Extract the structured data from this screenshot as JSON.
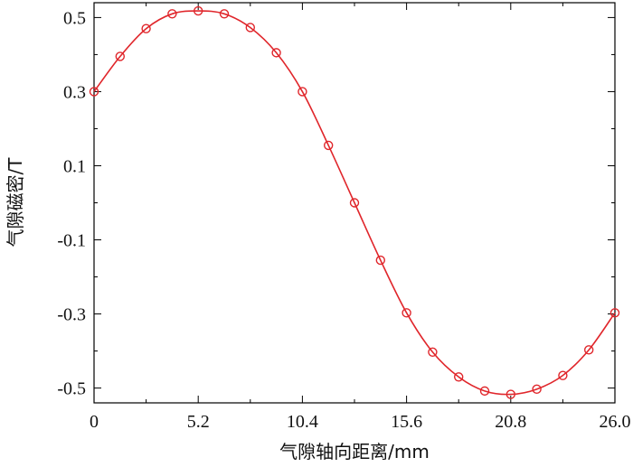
{
  "chart_data": {
    "type": "line",
    "xlabel": "气隙轴向距离/mm",
    "ylabel": "气隙磁密/T",
    "xlim": [
      0,
      26.0
    ],
    "ylim": [
      -0.54,
      0.54
    ],
    "x_ticks": [
      "0",
      "5.2",
      "10.4",
      "15.6",
      "20.8",
      "26.0"
    ],
    "x_tick_values": [
      0,
      5.2,
      10.4,
      15.6,
      20.8,
      26.0
    ],
    "y_ticks": [
      "0.5",
      "0.3",
      "0.1",
      "-0.1",
      "-0.3",
      "-0.5"
    ],
    "y_tick_values": [
      0.5,
      0.3,
      0.1,
      -0.1,
      -0.3,
      -0.5
    ],
    "grid": false,
    "series": [
      {
        "color": "#e0262b",
        "marker": "open-circle",
        "x": [
          0,
          1.3,
          2.6,
          3.9,
          5.2,
          6.5,
          7.8,
          9.1,
          10.4,
          11.7,
          13.0,
          14.3,
          15.6,
          16.9,
          18.2,
          19.5,
          20.8,
          22.1,
          23.4,
          24.7,
          26.0
        ],
        "y": [
          0.3,
          0.395,
          0.47,
          0.51,
          0.518,
          0.51,
          0.473,
          0.405,
          0.3,
          0.155,
          0.0,
          -0.155,
          -0.297,
          -0.403,
          -0.47,
          -0.508,
          -0.517,
          -0.503,
          -0.466,
          -0.397,
          -0.297
        ]
      }
    ]
  }
}
